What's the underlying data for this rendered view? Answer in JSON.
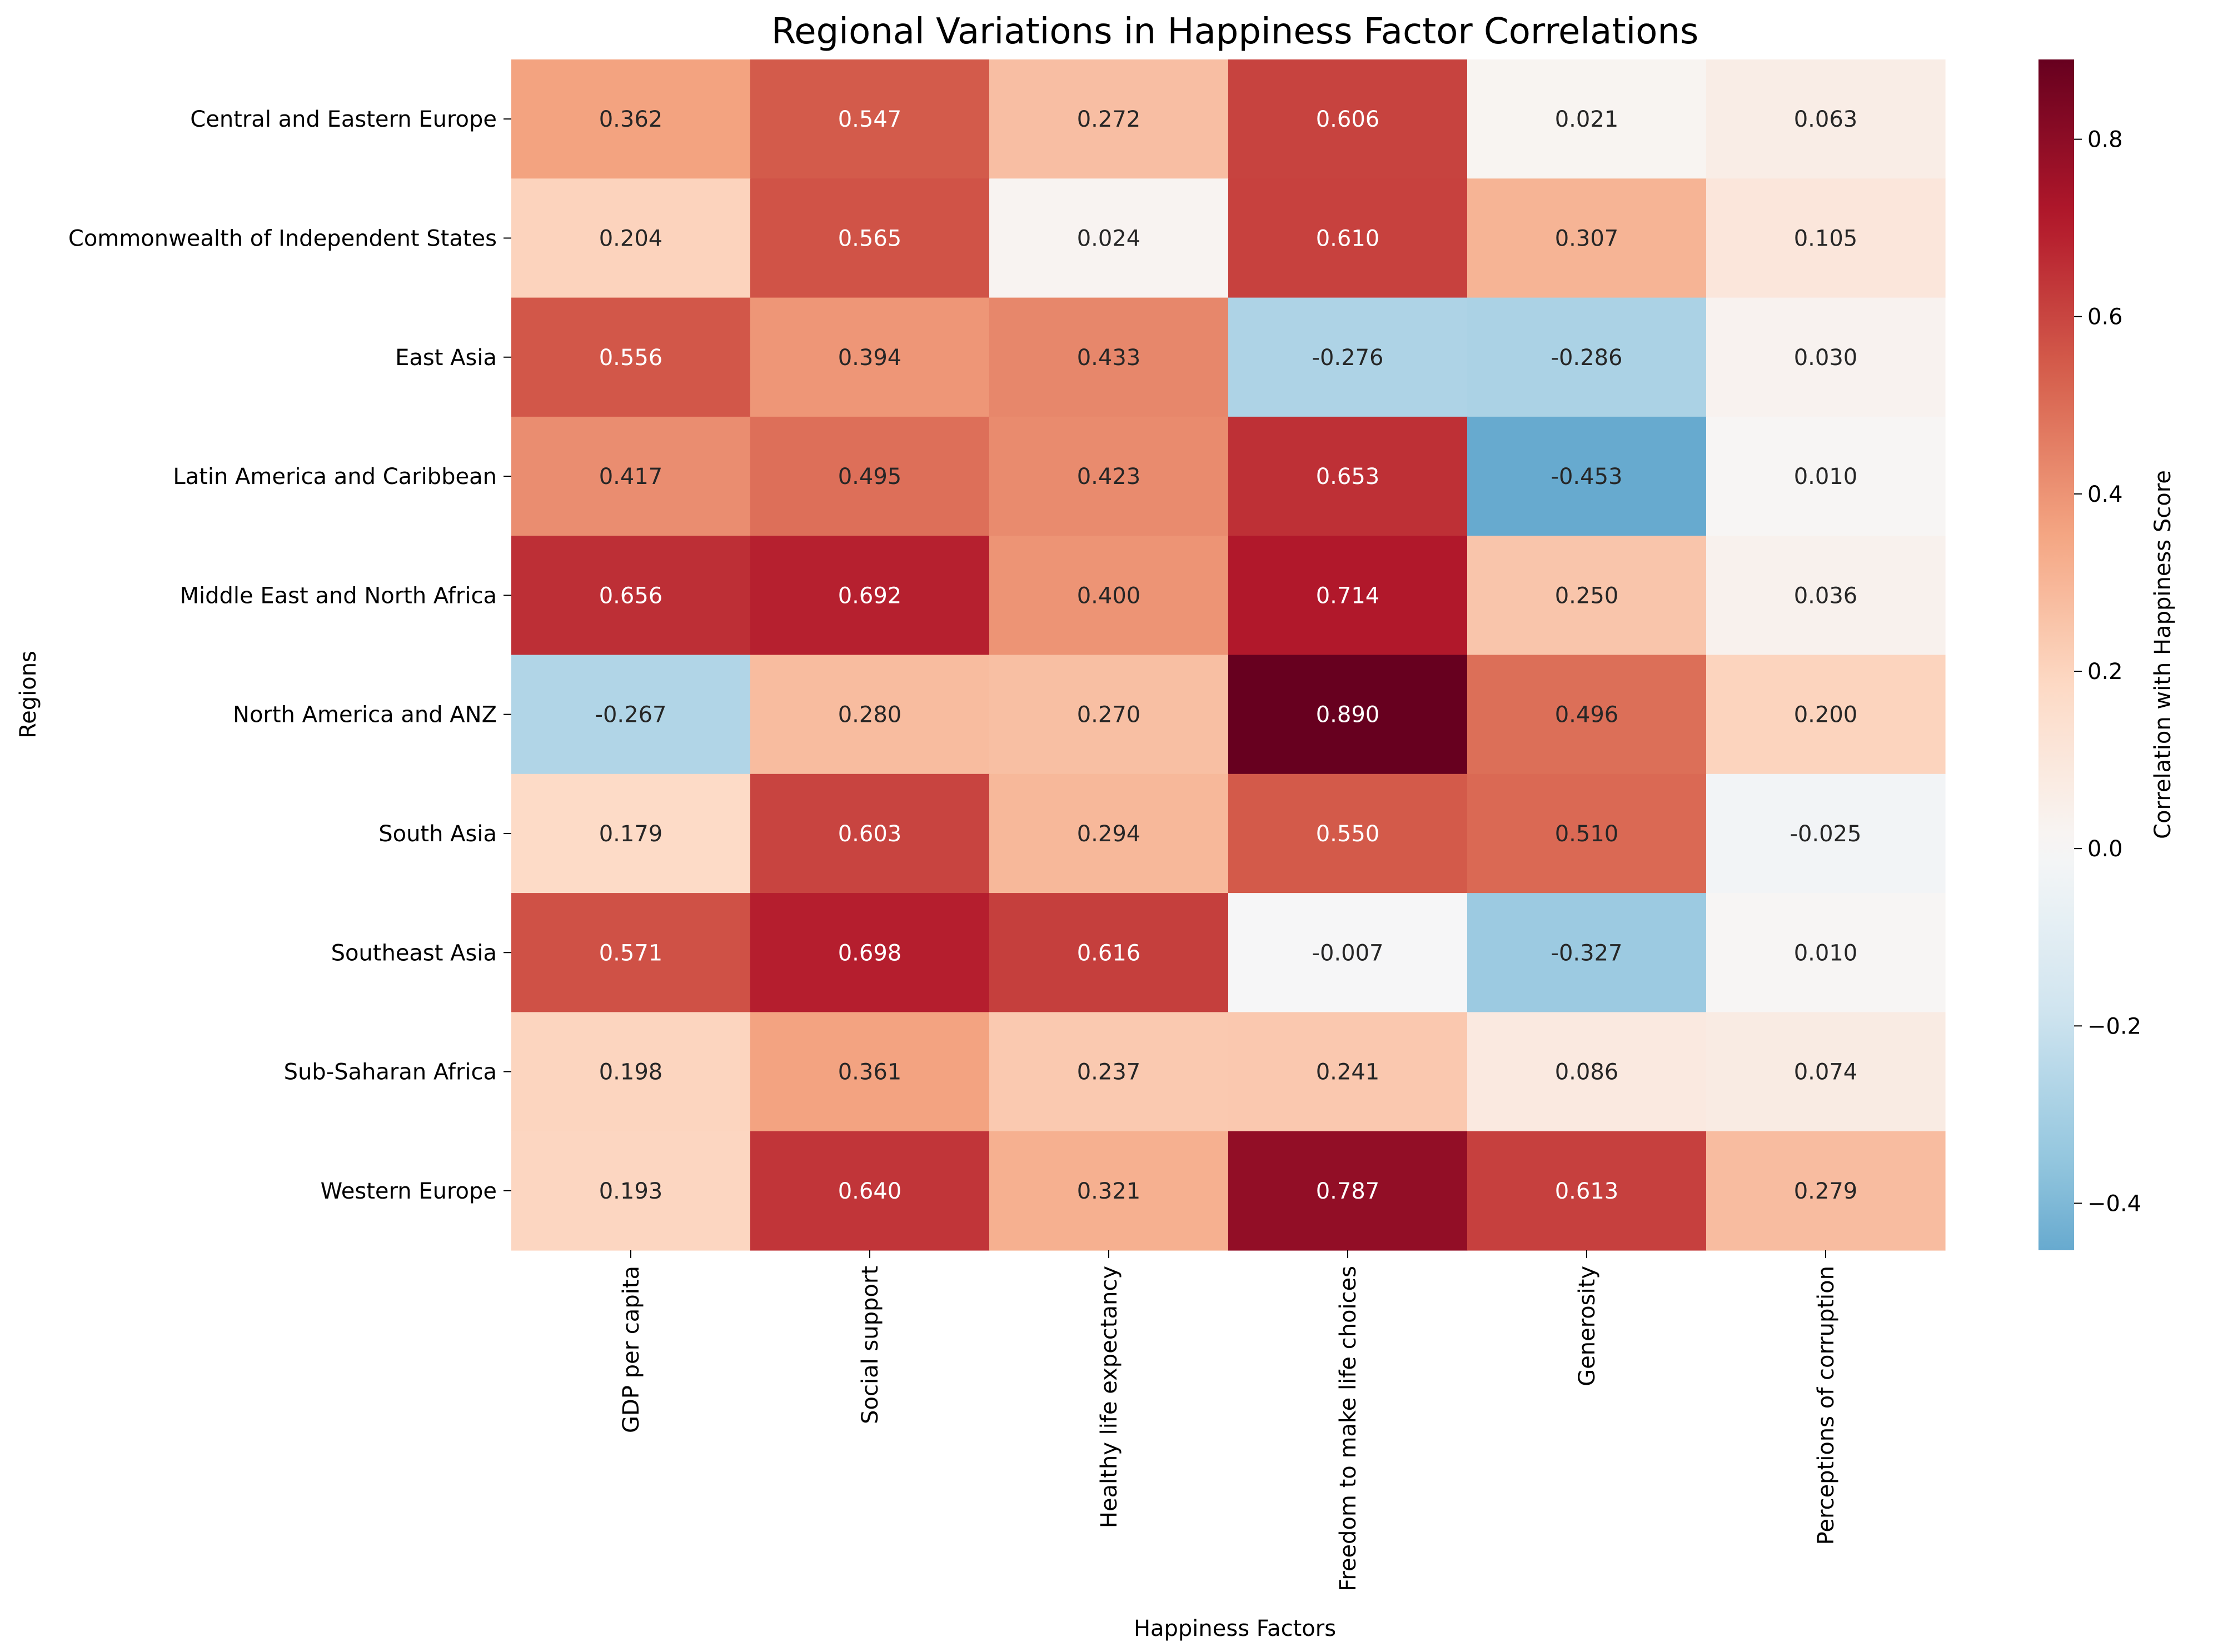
{
  "chart_data": {
    "type": "heatmap",
    "title": "Regional Variations in Happiness Factor Correlations",
    "xlabel": "Happiness Factors",
    "ylabel": "Regions",
    "colorbar_label": "Correlation with Happiness Score",
    "colormap": "RdBu_r",
    "vmin": -0.453,
    "vmax": 0.89,
    "colorbar_ticks": [
      0.8,
      0.6,
      0.4,
      0.2,
      0.0,
      -0.2,
      -0.4
    ],
    "colorbar_tick_labels": [
      "0.8",
      "0.6",
      "0.4",
      "0.2",
      "0.0",
      "−0.2",
      "−0.4"
    ],
    "columns": [
      "GDP per capita",
      "Social support",
      "Healthy life expectancy",
      "Freedom to make life choices",
      "Generosity",
      "Perceptions of corruption"
    ],
    "rows": [
      "Central and Eastern Europe",
      "Commonwealth of Independent States",
      "East Asia",
      "Latin America and Caribbean",
      "Middle East and North Africa",
      "North America and ANZ",
      "South Asia",
      "Southeast Asia",
      "Sub-Saharan Africa",
      "Western Europe"
    ],
    "values": [
      [
        0.362,
        0.547,
        0.272,
        0.606,
        0.021,
        0.063
      ],
      [
        0.204,
        0.565,
        0.024,
        0.61,
        0.307,
        0.105
      ],
      [
        0.556,
        0.394,
        0.433,
        -0.276,
        -0.286,
        0.03
      ],
      [
        0.417,
        0.495,
        0.423,
        0.653,
        -0.453,
        0.01
      ],
      [
        0.656,
        0.692,
        0.4,
        0.714,
        0.25,
        0.036
      ],
      [
        -0.267,
        0.28,
        0.27,
        0.89,
        0.496,
        0.2
      ],
      [
        0.179,
        0.603,
        0.294,
        0.55,
        0.51,
        -0.025
      ],
      [
        0.571,
        0.698,
        0.616,
        -0.007,
        -0.327,
        0.01
      ],
      [
        0.198,
        0.361,
        0.237,
        0.241,
        0.086,
        0.074
      ],
      [
        0.193,
        0.64,
        0.321,
        0.787,
        0.613,
        0.279
      ]
    ],
    "cell_labels": [
      [
        "0.362",
        "0.547",
        "0.272",
        "0.606",
        "0.021",
        "0.063"
      ],
      [
        "0.204",
        "0.565",
        "0.024",
        "0.610",
        "0.307",
        "0.105"
      ],
      [
        "0.556",
        "0.394",
        "0.433",
        "-0.276",
        "-0.286",
        "0.030"
      ],
      [
        "0.417",
        "0.495",
        "0.423",
        "0.653",
        "-0.453",
        "0.010"
      ],
      [
        "0.656",
        "0.692",
        "0.400",
        "0.714",
        "0.250",
        "0.036"
      ],
      [
        "-0.267",
        "0.280",
        "0.270",
        "0.890",
        "0.496",
        "0.200"
      ],
      [
        "0.179",
        "0.603",
        "0.294",
        "0.550",
        "0.510",
        "-0.025"
      ],
      [
        "0.571",
        "0.698",
        "0.616",
        "-0.007",
        "-0.327",
        "0.010"
      ],
      [
        "0.198",
        "0.361",
        "0.237",
        "0.241",
        "0.086",
        "0.074"
      ],
      [
        "0.193",
        "0.640",
        "0.321",
        "0.787",
        "0.613",
        "0.279"
      ]
    ]
  }
}
